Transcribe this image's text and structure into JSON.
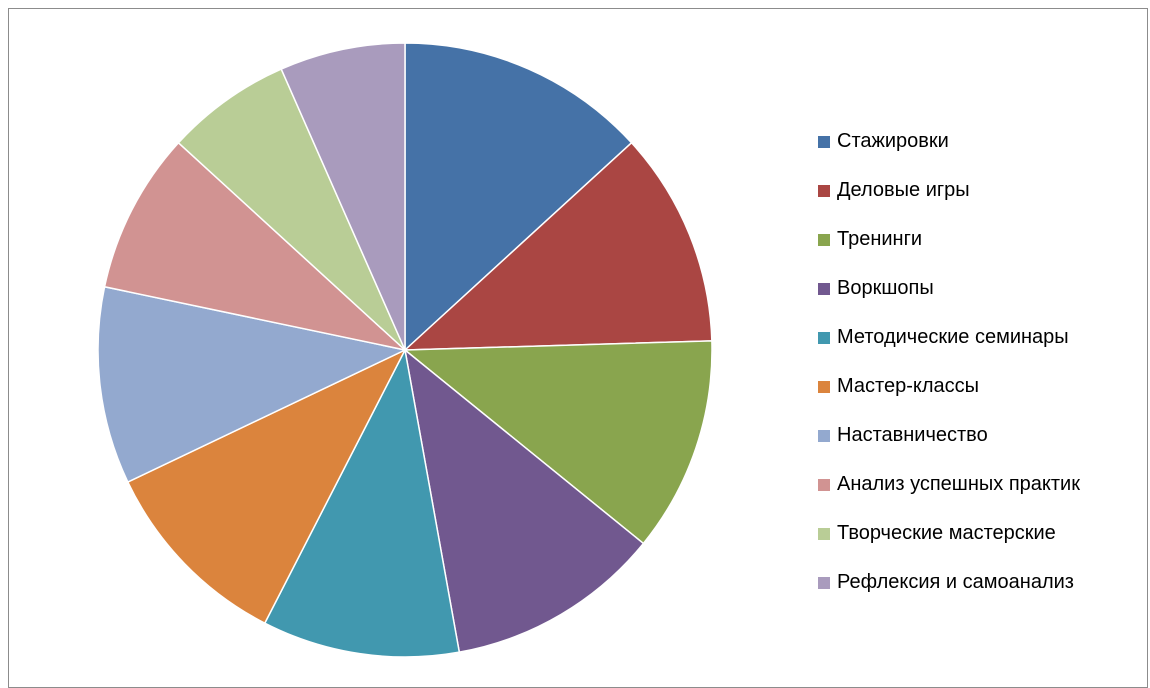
{
  "chart_data": {
    "type": "pie",
    "categories": [
      "Стажировки",
      "Деловые игры",
      "Тренинги",
      "Воркшопы",
      "Методические семинары",
      "Мастер-классы",
      "Наставничество",
      "Анализ успешных практик",
      "Творческие мастерские",
      "Рефлексия и самоанализ"
    ],
    "values": [
      14,
      12,
      12,
      12,
      11,
      11,
      11,
      9,
      7,
      7
    ],
    "colors": [
      "#4572A7",
      "#AA4643",
      "#89A54E",
      "#71588F",
      "#4198AF",
      "#DB843D",
      "#93A9CF",
      "#D19392",
      "#B9CD96",
      "#A99BBD"
    ],
    "title": "",
    "legend_position": "right",
    "start_angle": "top",
    "direction": "clockwise"
  }
}
